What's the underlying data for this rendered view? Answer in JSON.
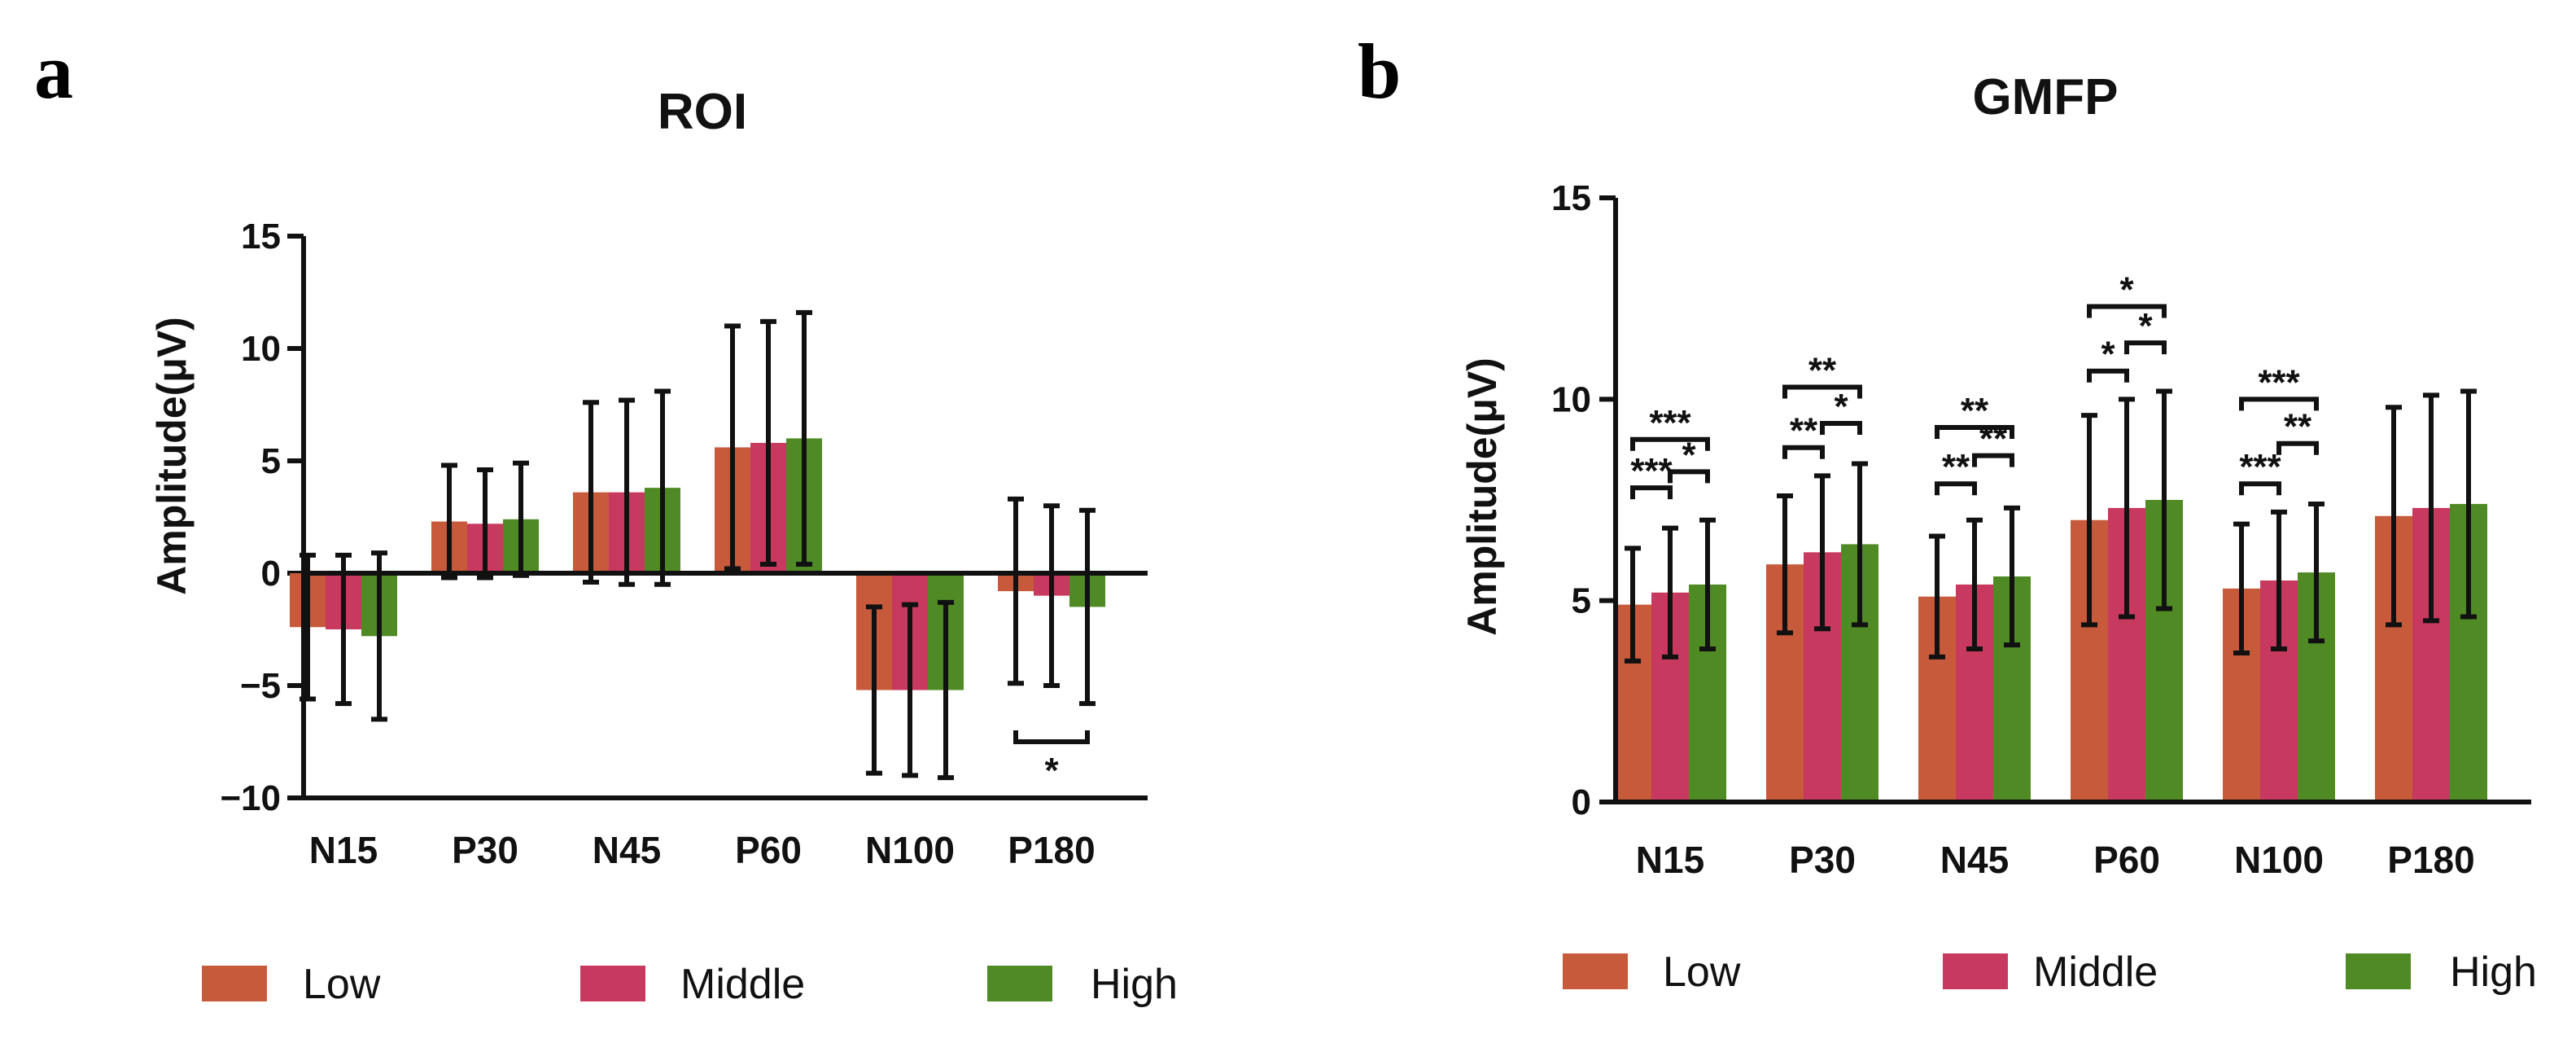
{
  "colors": {
    "Low": "#c65a3a",
    "Middle": "#c8395f",
    "High": "#4f8a24",
    "axis": "#111111"
  },
  "chart_data": [
    {
      "panel_letter": "a",
      "type": "bar",
      "title": "ROI",
      "xlabel": "",
      "ylabel": "Amplitude(μV)",
      "ylim": [
        -10,
        15
      ],
      "yticks": [
        -10,
        -5,
        0,
        5,
        10,
        15
      ],
      "ytick_labels": [
        "−10",
        "−5",
        "0",
        "5",
        "10",
        "15"
      ],
      "categories": [
        "N15",
        "P30",
        "N45",
        "P60",
        "N100",
        "P180"
      ],
      "series": [
        {
          "name": "Low",
          "values": [
            -2.4,
            2.3,
            3.6,
            5.6,
            -5.2,
            -0.8
          ],
          "errors": [
            3.2,
            2.5,
            4.0,
            5.4,
            3.7,
            4.1
          ]
        },
        {
          "name": "Middle",
          "values": [
            -2.5,
            2.2,
            3.6,
            5.8,
            -5.2,
            -1.0
          ],
          "errors": [
            3.3,
            2.4,
            4.1,
            5.4,
            3.8,
            4.0
          ]
        },
        {
          "name": "High",
          "values": [
            -2.8,
            2.4,
            3.8,
            6.0,
            -5.2,
            -1.5
          ],
          "errors": [
            3.7,
            2.5,
            4.3,
            5.6,
            3.9,
            4.3
          ]
        }
      ],
      "significance": [
        {
          "category": "P180",
          "from": "Low",
          "to": "High",
          "at": -7.5,
          "label": "*",
          "below": true
        }
      ],
      "legend": [
        "Low",
        "Middle",
        "High"
      ],
      "legend_position": "bottom"
    },
    {
      "panel_letter": "b",
      "type": "bar",
      "title": "GMFP",
      "xlabel": "",
      "ylabel": "Amplitude(μV)",
      "ylim": [
        0,
        15
      ],
      "yticks": [
        0,
        5,
        10,
        15
      ],
      "ytick_labels": [
        "0",
        "5",
        "10",
        "15"
      ],
      "categories": [
        "N15",
        "P30",
        "N45",
        "P60",
        "N100",
        "P180"
      ],
      "series": [
        {
          "name": "Low",
          "values": [
            4.9,
            5.9,
            5.1,
            7.0,
            5.3,
            7.1
          ],
          "errors": [
            1.4,
            1.7,
            1.5,
            2.6,
            1.6,
            2.7
          ]
        },
        {
          "name": "Middle",
          "values": [
            5.2,
            6.2,
            5.4,
            7.3,
            5.5,
            7.3
          ],
          "errors": [
            1.6,
            1.9,
            1.6,
            2.7,
            1.7,
            2.8
          ]
        },
        {
          "name": "High",
          "values": [
            5.4,
            6.4,
            5.6,
            7.5,
            5.7,
            7.4
          ],
          "errors": [
            1.6,
            2.0,
            1.7,
            2.7,
            1.7,
            2.8
          ]
        }
      ],
      "significance": [
        {
          "category": "N15",
          "from": "Low",
          "to": "High",
          "at": 9.0,
          "label": "***"
        },
        {
          "category": "N15",
          "from": "Middle",
          "to": "High",
          "at": 8.2,
          "label": "*"
        },
        {
          "category": "N15",
          "from": "Low",
          "to": "Middle",
          "at": 7.8,
          "label": "***"
        },
        {
          "category": "P30",
          "from": "Low",
          "to": "High",
          "at": 10.3,
          "label": "**"
        },
        {
          "category": "P30",
          "from": "Middle",
          "to": "High",
          "at": 9.4,
          "label": "*"
        },
        {
          "category": "P30",
          "from": "Low",
          "to": "Middle",
          "at": 8.8,
          "label": "**"
        },
        {
          "category": "N45",
          "from": "Low",
          "to": "High",
          "at": 9.3,
          "label": "**"
        },
        {
          "category": "N45",
          "from": "Middle",
          "to": "High",
          "at": 8.6,
          "label": "**"
        },
        {
          "category": "N45",
          "from": "Low",
          "to": "Middle",
          "at": 7.9,
          "label": "**"
        },
        {
          "category": "P60",
          "from": "Low",
          "to": "High",
          "at": 12.3,
          "label": "*"
        },
        {
          "category": "P60",
          "from": "Middle",
          "to": "High",
          "at": 11.4,
          "label": "*"
        },
        {
          "category": "P60",
          "from": "Low",
          "to": "Middle",
          "at": 10.7,
          "label": "*"
        },
        {
          "category": "N100",
          "from": "Low",
          "to": "High",
          "at": 10.0,
          "label": "***"
        },
        {
          "category": "N100",
          "from": "Middle",
          "to": "High",
          "at": 8.9,
          "label": "**"
        },
        {
          "category": "N100",
          "from": "Low",
          "to": "Middle",
          "at": 7.9,
          "label": "***"
        }
      ],
      "legend": [
        "Low",
        "Middle",
        "High"
      ],
      "legend_position": "bottom"
    }
  ]
}
